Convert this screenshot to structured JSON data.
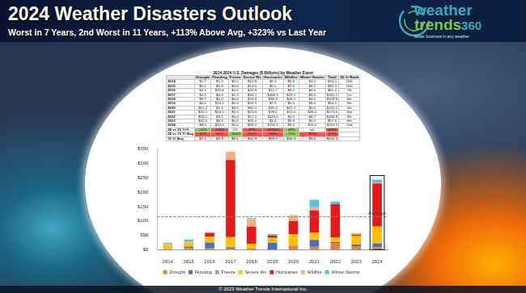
{
  "header": {
    "title": "2024 Weather Disasters Outlook",
    "subtitle": "Worst in 7 Years, 2nd Worst in 11 Years, +113% Above Avg, +323% vs Last Year"
  },
  "logo": {
    "word1": "weather",
    "word2": "trends",
    "word3": "360",
    "tagline": "better business in any weather"
  },
  "table": {
    "title": "2014-2024 U.S. Damages ($ Billions) by Weather Event",
    "columns": [
      "Drought",
      "Flooding",
      "Freeze",
      "Severe Wx",
      "Hurricanes",
      "Wildfire",
      "Winter Storms",
      "Total",
      "10-Yr Rank"
    ],
    "rows": [
      [
        "2014",
        "$1.2",
        "$1.2",
        "$0.0",
        "$13.8",
        "$0.0",
        "$3.6",
        "$4.2",
        "$24.0",
        "11th"
      ],
      [
        "2015",
        "$5.0",
        "$5.9",
        "$0.0",
        "$14.6",
        "$0.0",
        "$3.6",
        "$6.2",
        "$35.3",
        "10th"
      ],
      [
        "2016",
        "$4.1",
        "$20.6",
        "$0.0",
        "$20.8",
        "$12.7",
        "$3.0",
        "$0.0",
        "$61.2",
        "7th"
      ],
      [
        "2017",
        "$3.2",
        "$4.9",
        "$1.2",
        "$34.1",
        "$268.5",
        "$29.1",
        "$0.0",
        "$341.0",
        "1st"
      ],
      [
        "2018",
        "$3.7",
        "$0.0",
        "$0.0",
        "$16.5",
        "$59.5",
        "$26.1",
        "$4.0",
        "$109.8",
        "6th"
      ],
      [
        "2019",
        "$0.0",
        "$24.2",
        "$0.0",
        "$16.5",
        "$7.9",
        "$0.0",
        "$5.4",
        "$54.0",
        "9th"
      ],
      [
        "2020",
        "$11.2",
        "$2.4",
        "$0.0",
        "$40.2",
        "$45.0",
        "$21.2",
        "$0.0",
        "$120.0",
        "5th"
      ],
      [
        "2021",
        "$10.0",
        "$24.0",
        "$0.0",
        "$24.6",
        "$78.0",
        "$11.0",
        "$26.0",
        "$173.6",
        "3rd"
      ],
      [
        "2022",
        "$23.0",
        "$3.1",
        "$0.0",
        "$17.0",
        "$115.0",
        "$0.0",
        "$8.7",
        "$166.8",
        "4th"
      ],
      [
        "2023",
        "$10.5",
        "$6.9",
        "$0.0",
        "$31.0",
        "$3.4",
        "$5.8",
        "$0.0",
        "$57.6",
        "8th"
      ],
      [
        "2024",
        "$8.0",
        "$14.0",
        "$0.0",
        "$58.0",
        "$150.5",
        "$3.0",
        "$10.0",
        "$243.5",
        "2nd"
      ]
    ],
    "summary_rows": [
      {
        "cells": [
          "24 vs 23 Yr%",
          "-24%",
          "103%",
          "0%",
          "87%",
          "4326%",
          "-48%",
          "n/a",
          "323%"
        ],
        "colors": [
          "#ffffff",
          "#92d050",
          "#ff5050",
          "#ffffff",
          "#ff5050",
          "#ff5050",
          "#92d050",
          "#ffffff",
          "#ff5050"
        ]
      },
      {
        "cells": [
          "24 vs 10 Yr Avg",
          "11%",
          "51%",
          "-100%",
          "153%",
          "155%",
          "-71%",
          "82%",
          "113%"
        ],
        "colors": [
          "#ffffff",
          "#ff5050",
          "#ff5050",
          "#92d050",
          "#ff5050",
          "#ff5050",
          "#92d050",
          "#ff5050",
          "#ff5050"
        ]
      },
      {
        "cells": [
          "10 Yr Avg",
          "$7.2",
          "$9.3",
          "$0.1",
          "$22.9",
          "$59.0",
          "$10.3",
          "$5.5",
          "$114.3"
        ],
        "colors": [
          "#ffffff",
          "#eeeeee",
          "#eeeeee",
          "#eeeeee",
          "#eeeeee",
          "#eeeeee",
          "#eeeeee",
          "#eeeeee",
          "#eeeeee"
        ]
      }
    ]
  },
  "chart_data": {
    "type": "bar",
    "stacked": true,
    "legend": "bottom",
    "grid": false,
    "categories": [
      "2014",
      "2015",
      "2016",
      "2017",
      "2018",
      "2019",
      "2020",
      "2021",
      "2022",
      "2023",
      "2024"
    ],
    "series": [
      {
        "name": "Drought",
        "color": "#ed7d31",
        "values": [
          1.2,
          5.0,
          4.1,
          3.2,
          3.7,
          0.0,
          11.2,
          10.0,
          23.0,
          10.5,
          8.0
        ]
      },
      {
        "name": "Flooding",
        "color": "#4472c4",
        "values": [
          1.2,
          5.9,
          20.6,
          4.9,
          0.0,
          24.2,
          2.4,
          24.0,
          3.1,
          6.9,
          14.0
        ]
      },
      {
        "name": "Freeze",
        "color": "#a5a5a5",
        "values": [
          0.0,
          0.0,
          0.0,
          1.2,
          0.0,
          0.0,
          0.0,
          0.0,
          0.0,
          0.0,
          0.0
        ]
      },
      {
        "name": "Severe Wx",
        "color": "#ffc000",
        "values": [
          13.8,
          14.6,
          20.8,
          34.1,
          16.5,
          16.5,
          40.2,
          24.6,
          17.0,
          31.0,
          58.0
        ]
      },
      {
        "name": "Hurricanes",
        "color": "#e31a1c",
        "values": [
          0.0,
          0.0,
          12.7,
          268.5,
          59.5,
          7.9,
          45.0,
          78.0,
          115.0,
          3.4,
          150.5
        ]
      },
      {
        "name": "Wildfire",
        "color": "#f4b183",
        "values": [
          3.6,
          3.6,
          3.0,
          29.1,
          26.1,
          0.0,
          21.2,
          11.0,
          0.0,
          5.8,
          3.0
        ]
      },
      {
        "name": "Winter Storms",
        "color": "#4fc3e8",
        "values": [
          4.2,
          6.2,
          0.0,
          0.0,
          4.0,
          5.4,
          0.0,
          26.0,
          8.7,
          0.0,
          10.0
        ]
      }
    ],
    "ylim": [
      0,
      350
    ],
    "yticks": [
      {
        "value": 0,
        "label": "$0"
      },
      {
        "value": 50,
        "label": "$50"
      },
      {
        "value": 100,
        "label": "$100"
      },
      {
        "value": 150,
        "label": "$150"
      },
      {
        "value": 200,
        "label": "$200"
      },
      {
        "value": 250,
        "label": "$250"
      },
      {
        "value": 300,
        "label": "$300"
      },
      {
        "value": 350,
        "label": "$350"
      }
    ],
    "annotations": [
      {
        "label": "Average",
        "y": 114.3
      }
    ]
  },
  "footer": "© 2023 Weather Trends International Inc."
}
